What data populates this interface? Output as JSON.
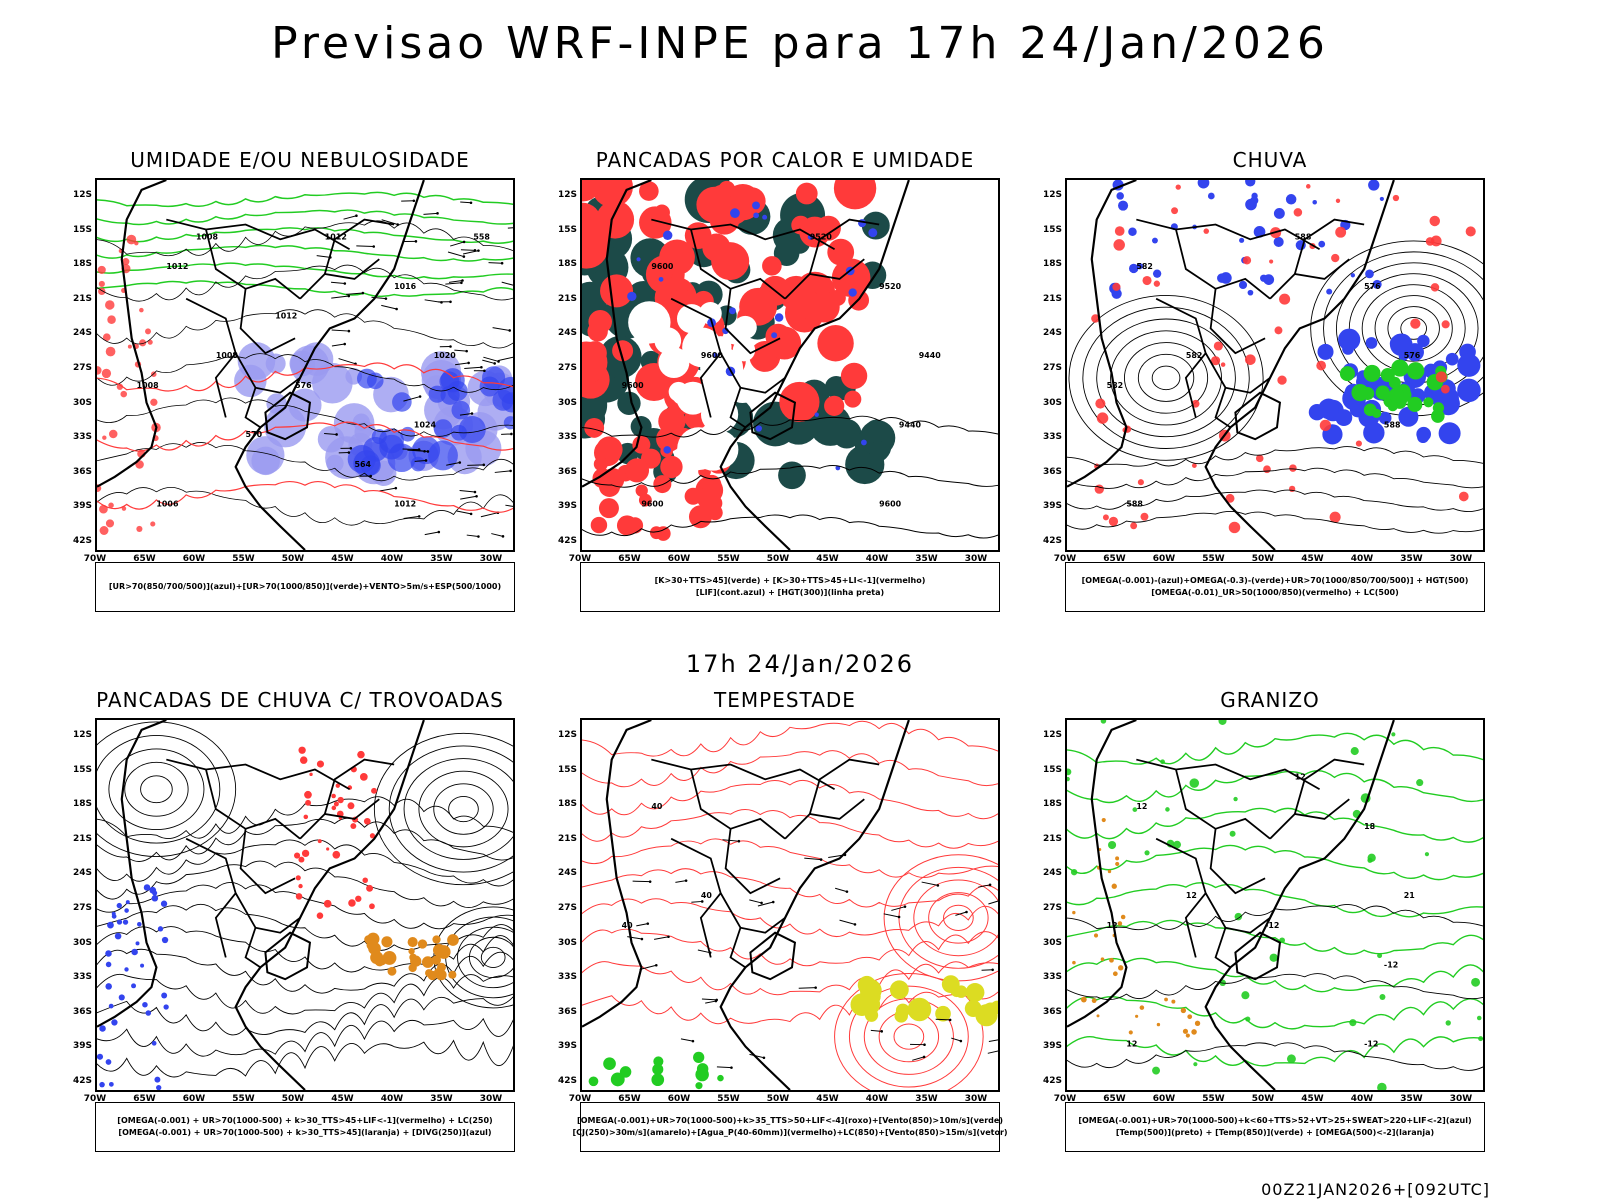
{
  "main_title": "Previsao WRF-INPE  para 17h 24/Jan/2026",
  "mid_date": "17h 24/Jan/2026",
  "run_stamp": "00Z21JAN2026+[092UTC]",
  "lat_labels": [
    "12S",
    "15S",
    "18S",
    "21S",
    "24S",
    "27S",
    "30S",
    "33S",
    "36S",
    "39S",
    "42S"
  ],
  "lon_labels": [
    "70W",
    "65W",
    "60W",
    "55W",
    "50W",
    "45W",
    "40W",
    "35W",
    "30W"
  ],
  "colors": {
    "red": "#ff3a3a",
    "green": "#22cc22",
    "blue": "#3344ee",
    "lavender": "#9a9af0",
    "darkteal": "#1c4a48",
    "orange": "#e08a1c",
    "yellow": "#dcdc22",
    "black": "#000000"
  },
  "panels": [
    {
      "id": "umidade",
      "title": "UMIDADE E/OU NEBULOSIDADE",
      "legend": [
        "[UR>70(850/700/500)](azul)+[UR>70(1000/850)](verde)+VENTO>5m/s+ESP(500/1000)"
      ],
      "contour_labels": [
        "1012",
        "1008",
        "1008",
        "1006",
        "1012",
        "1016",
        "1020",
        "1024",
        "1012",
        "576",
        "570",
        "564",
        "558",
        "1008",
        "1012"
      ]
    },
    {
      "id": "pancadas-calor",
      "title": "PANCADAS POR CALOR E UMIDADE",
      "legend": [
        "[K>30+TTS>45](verde) + [K>30+TTS>45+LI<-1](vermelho)",
        "[LIF](cont.azul) + [HGT(300)](linha preta)"
      ],
      "contour_labels": [
        "9600",
        "9600",
        "9600",
        "9600",
        "9520",
        "9520",
        "9440",
        "9440",
        "9600"
      ]
    },
    {
      "id": "chuva",
      "title": "CHUVA",
      "legend": [
        "[OMEGA(-0.001)-(azul)+OMEGA(-0.3)-(verde)+UR>70(1000/850/700/500)] + HGT(500)",
        "[OMEGA(-0.01)_UR>50(1000/850)(vermelho) + LC(500)"
      ],
      "contour_labels": [
        "582",
        "582",
        "582",
        "588",
        "588",
        "576",
        "576",
        "588"
      ]
    },
    {
      "id": "trovoadas",
      "title": "PANCADAS DE CHUVA C/ TROVOADAS",
      "legend": [
        "[OMEGA(-0.001) + UR>70(1000-500) + k>30_TTS>45+LIF<-1](vermelho) + LC(250)",
        "[OMEGA(-0.001) + UR>70(1000-500) + k>30_TTS>45](laranja) + [DIVG(250)](azul)"
      ],
      "contour_labels": []
    },
    {
      "id": "tempestade",
      "title": "TEMPESTADE",
      "legend": [
        "[OMEGA(-0.001)+UR>70(1000-500)+k>35_TTS>50+LIF<-4](roxo)+[Vento(850)>10m/s](verde)",
        "[CJ(250)>30m/s](amarelo)+[Agua_P(40-60mm)](vermelho)+LC(850)+[Vento(850)>15m/s](vetor)"
      ],
      "contour_labels": [
        "40",
        "40",
        "40"
      ]
    },
    {
      "id": "granizo",
      "title": "GRANIZO",
      "legend": [
        "[OMEGA(-0.001)+UR>70(1000-500)+k<60+TTS>52+VT>25+SWEAT>220+LIF<-2](azul)",
        "[Temp(500)](preto) + [Temp(850)](verde) + [OMEGA(500)<-2](laranja)"
      ],
      "contour_labels": [
        "12",
        "12",
        "12",
        "12",
        "12",
        "18",
        "21",
        "-12",
        "-12",
        "-12"
      ]
    }
  ]
}
